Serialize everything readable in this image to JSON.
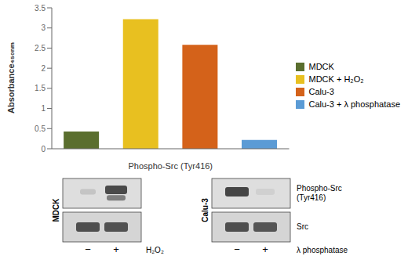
{
  "chart_data": {
    "type": "bar",
    "categories": [
      "MDCK",
      "MDCK + H₂O₂",
      "Calu-3",
      "Calu-3 + λ phosphatase"
    ],
    "values": [
      0.43,
      3.22,
      2.58,
      0.22
    ],
    "colors": [
      "#5a6e2e",
      "#e8c020",
      "#d4621a",
      "#5b9bd5"
    ],
    "xlabel": "Phospho-Src (Tyr416)",
    "ylabel": "Absorbance₄₅₀ₙₘ",
    "ylim": [
      0,
      3.5
    ],
    "yticks": [
      0,
      0.5,
      1,
      1.5,
      2,
      2.5,
      3,
      3.5
    ],
    "grid": false,
    "legend": "right",
    "tick_labels": "y",
    "annotations": [
      "MDCK",
      "Calu-3",
      "Phospho-Src",
      "(Tyr416)",
      "Src",
      "−",
      "+",
      "H₂O₂",
      "−",
      "+",
      "λ phosphatase"
    ]
  }
}
